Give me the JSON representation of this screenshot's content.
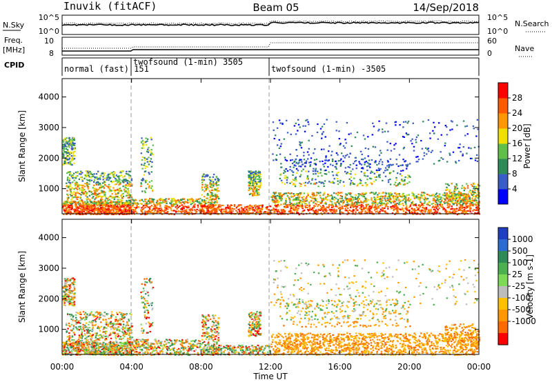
{
  "header": {
    "station": "Inuvik (fitACF)",
    "beam": "Beam 05",
    "date": "14/Sep/2018"
  },
  "top_panels": {
    "nsky_label": "N.Sky",
    "nsky_ticks": [
      "10^5",
      "10^0"
    ],
    "nsearch_ticks": [
      "10^5",
      "10^0"
    ],
    "nsearch_label": "N.Search",
    "freq_label_1": "Freq.",
    "freq_label_2": "[MHz]",
    "freq_ticks": [
      "10",
      "8"
    ],
    "nave_ticks": [
      "60",
      "0"
    ],
    "nave_label": "Nave",
    "cpid_label": "CPID",
    "cpid_segments": [
      "normal (fast) 151",
      "twofsound (1-min) 3505",
      "twofsound (1-min) -3505"
    ]
  },
  "axes": {
    "xlabel": "Time UT",
    "x_ticks": [
      "00:00",
      "04:00",
      "08:00",
      "12:00",
      "16:00",
      "20:00",
      "00:00"
    ],
    "ylabel": "Slant Range [km]",
    "y_ticks": [
      "1000",
      "2000",
      "3000",
      "4000"
    ]
  },
  "chart_data": [
    {
      "type": "heatmap",
      "title": "",
      "xlabel": "Time UT",
      "ylabel": "Slant Range [km]",
      "xlim": [
        "00:00",
        "24:00"
      ],
      "ylim": [
        180,
        4600
      ],
      "colorbar": {
        "label": "Power [dB]",
        "ticks": [
          "4",
          "8",
          "12",
          "16",
          "20",
          "24",
          "28"
        ],
        "colors": [
          "#0000ff",
          "#3a5cc6",
          "#2e8b57",
          "#5fbf4a",
          "#f0e000",
          "#ff9800",
          "#ff5a00",
          "#ff0000"
        ]
      }
    },
    {
      "type": "heatmap",
      "title": "",
      "xlabel": "Time UT",
      "ylabel": "Slant Range [km]",
      "xlim": [
        "00:00",
        "24:00"
      ],
      "ylim": [
        180,
        4600
      ],
      "colorbar": {
        "label": "Velocity [m s-1]",
        "ticks": [
          "1000",
          "500",
          "100",
          "25",
          "-25",
          "-100",
          "-500",
          "-1000"
        ],
        "colors": [
          "#1f3fbf",
          "#2e6bd1",
          "#2e8b57",
          "#4caf50",
          "#7ed957",
          "#bdbdbd",
          "#ffc000",
          "#ff9800",
          "#ff6a00",
          "#ff0000"
        ]
      }
    }
  ]
}
